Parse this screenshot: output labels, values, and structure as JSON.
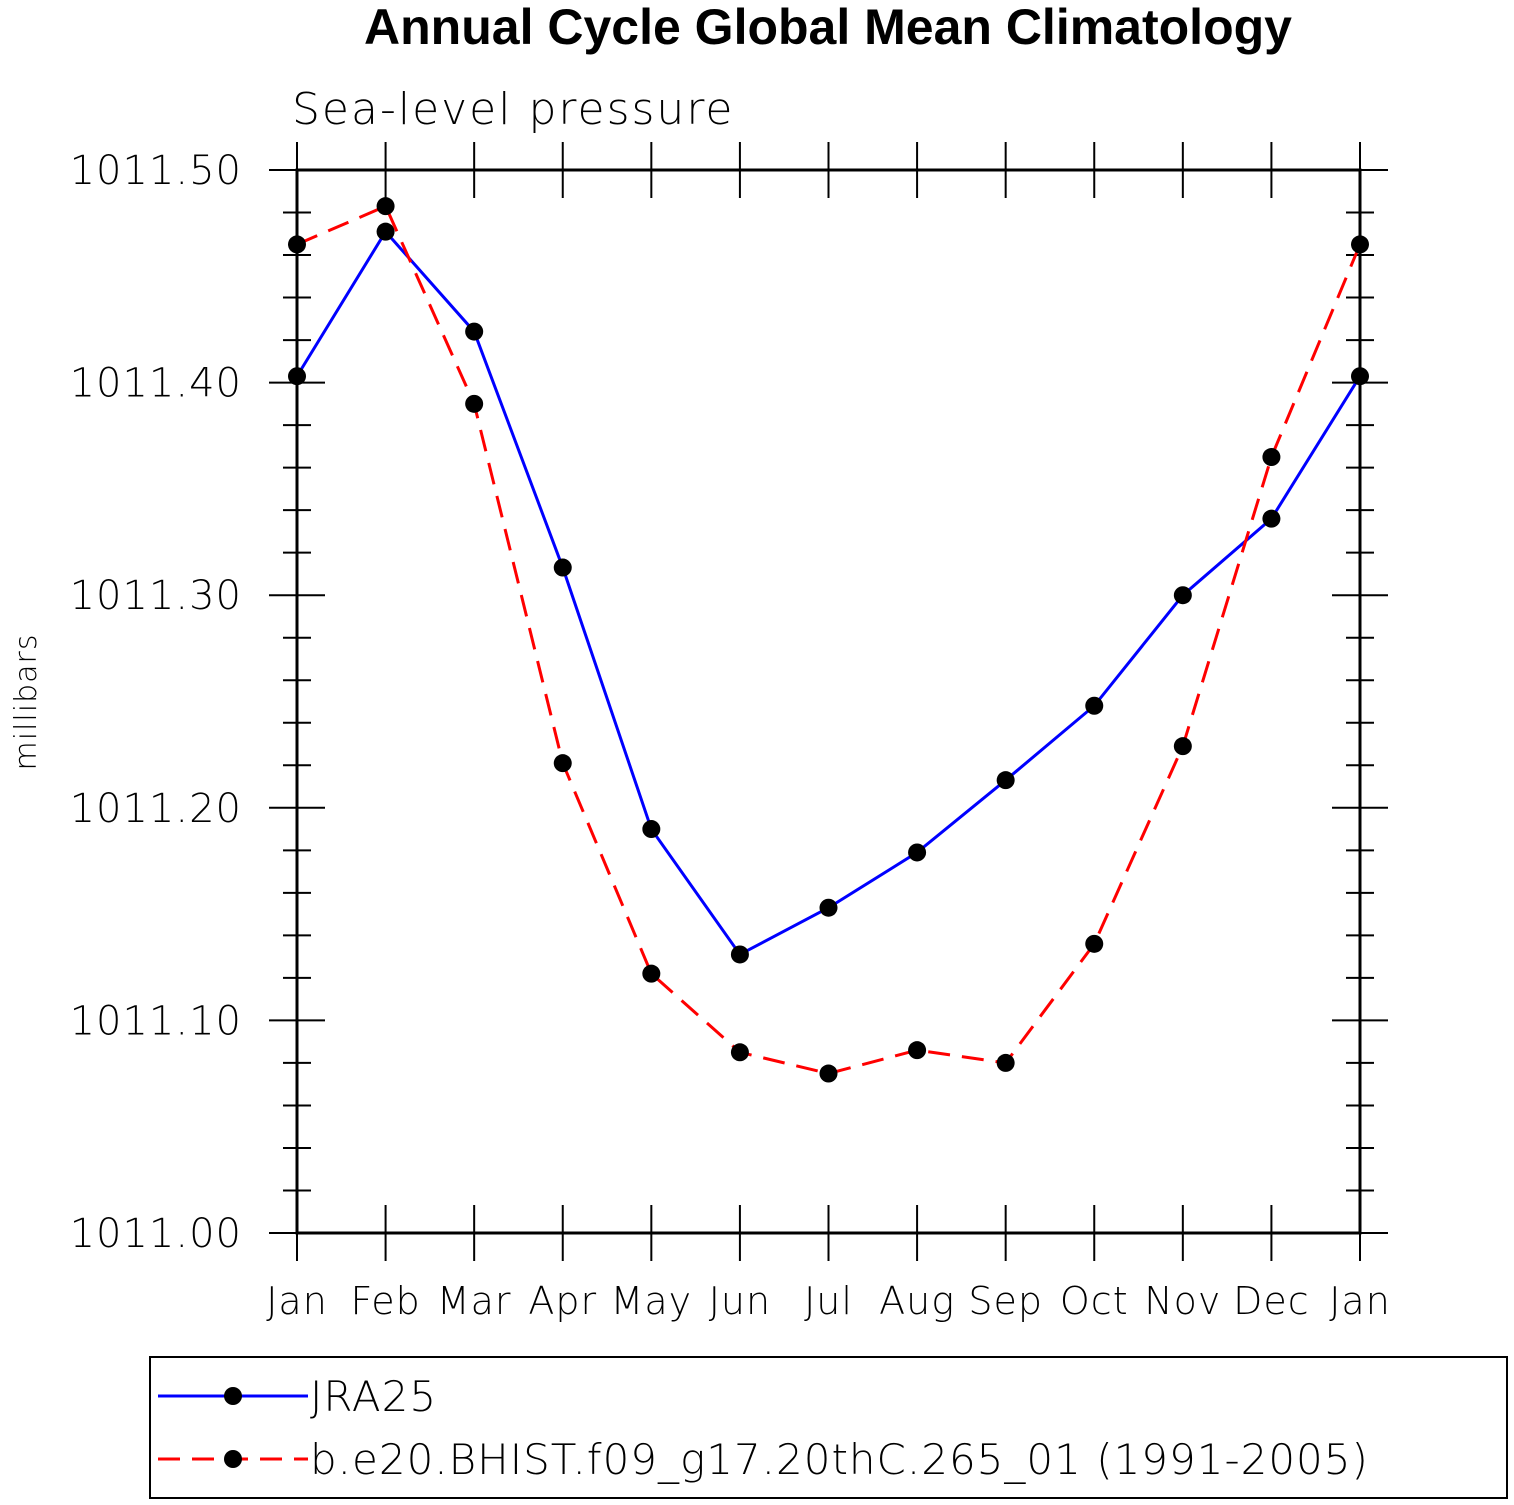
{
  "chart_data": {
    "type": "line",
    "title": "Annual Cycle Global Mean Climatology",
    "subtitle": "Sea-level pressure",
    "xlabel": "",
    "ylabel": "millibars",
    "categories": [
      "Jan",
      "Feb",
      "Mar",
      "Apr",
      "May",
      "Jun",
      "Jul",
      "Aug",
      "Sep",
      "Oct",
      "Nov",
      "Dec",
      "Jan"
    ],
    "ylim": [
      1011.0,
      1011.5
    ],
    "yticks": [
      1011.0,
      1011.1,
      1011.2,
      1011.3,
      1011.4,
      1011.5
    ],
    "ytick_labels": [
      "1011.00",
      "1011.10",
      "1011.20",
      "1011.30",
      "1011.40",
      "1011.50"
    ],
    "grid": false,
    "legend_position": "bottom",
    "series": [
      {
        "name": "JRA25",
        "color": "#0000ff",
        "dash": "solid",
        "marker": "filled-circle",
        "values": [
          1011.403,
          1011.471,
          1011.424,
          1011.313,
          1011.19,
          1011.131,
          1011.153,
          1011.179,
          1011.213,
          1011.248,
          1011.3,
          1011.336,
          1011.403
        ]
      },
      {
        "name": "b.e20.BHIST.f09_g17.20thC.265_01 (1991-2005)",
        "color": "#ff0000",
        "dash": "dashed",
        "marker": "filled-circle",
        "values": [
          1011.465,
          1011.483,
          1011.39,
          1011.221,
          1011.122,
          1011.085,
          1011.075,
          1011.086,
          1011.08,
          1011.136,
          1011.229,
          1011.365,
          1011.465
        ]
      }
    ]
  }
}
